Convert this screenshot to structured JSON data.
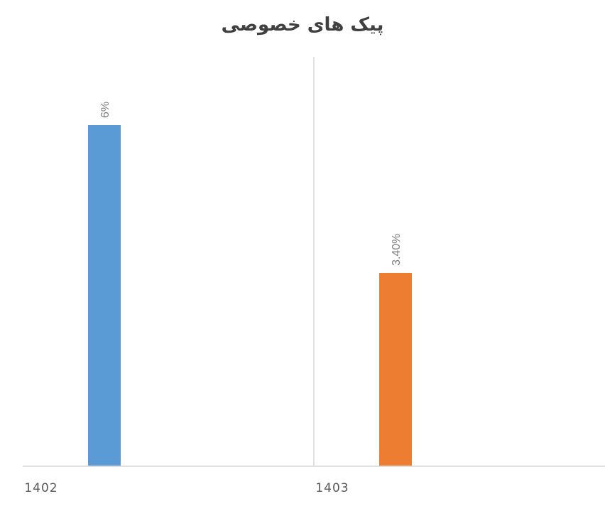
{
  "chart_data": {
    "type": "bar",
    "title": "پیک های خصوصی",
    "categories": [
      "1402",
      "1403"
    ],
    "values": [
      6,
      3.4
    ],
    "data_labels": [
      "6%",
      "3.40%"
    ],
    "colors": [
      "#5b9bd5",
      "#ed7d31"
    ],
    "ylim": [
      0,
      7.2
    ],
    "grid": false,
    "legend": "none",
    "xlabel": "",
    "ylabel": ""
  }
}
